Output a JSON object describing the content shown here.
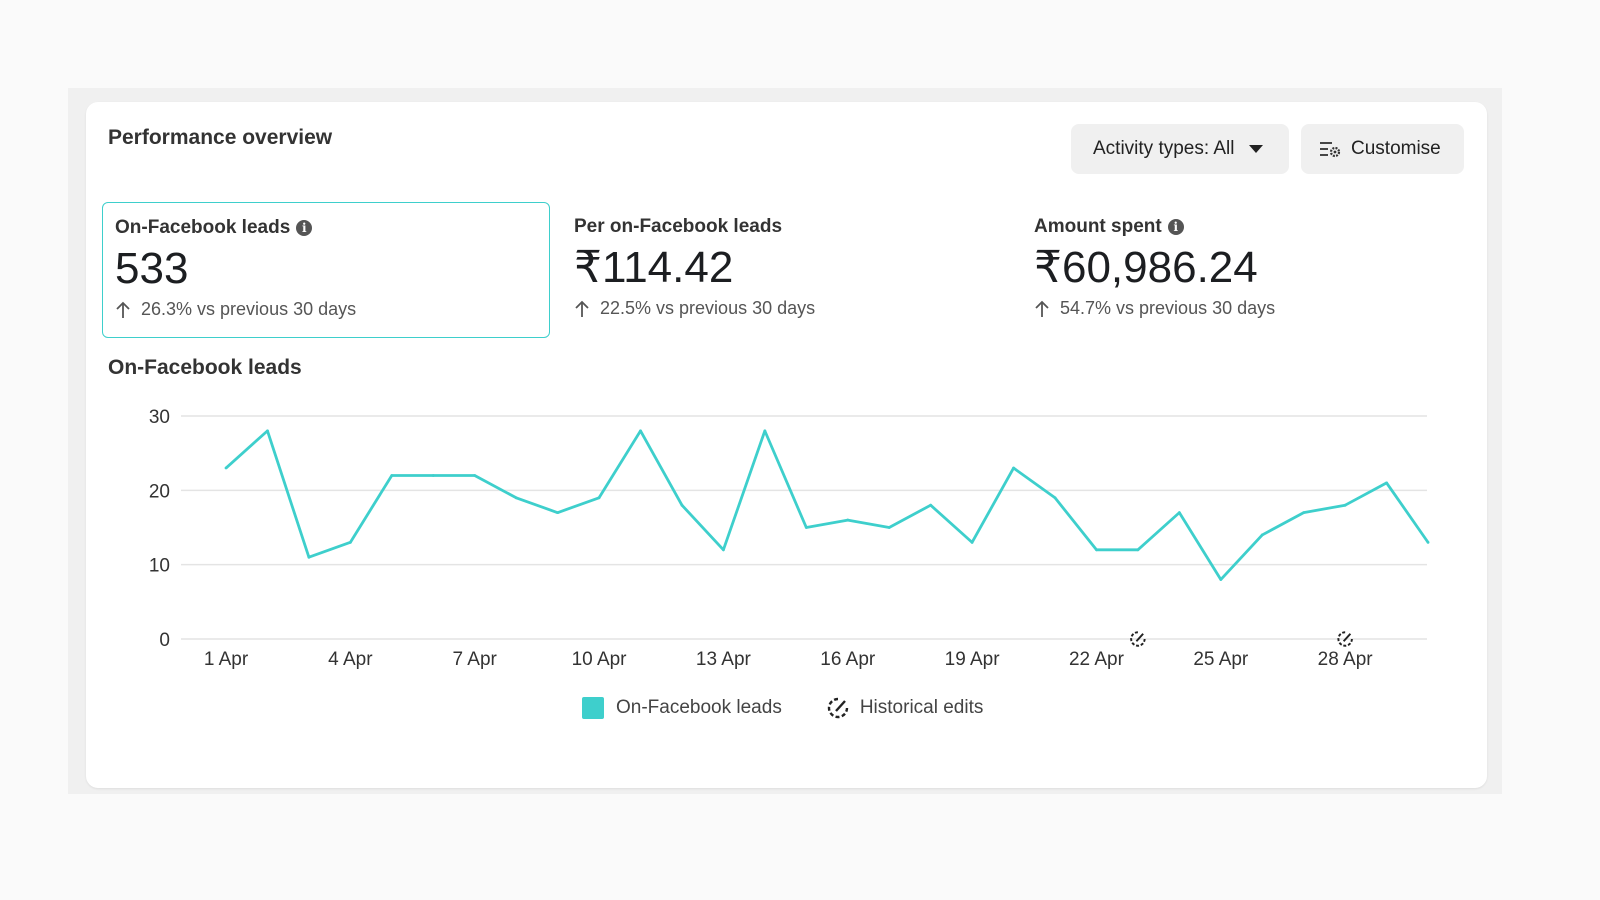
{
  "card": {
    "title": "Performance overview",
    "activity_button": "Activity types: All",
    "customise_button": "Customise"
  },
  "metrics": [
    {
      "label": "On-Facebook leads",
      "value": "533",
      "change": "26.3% vs previous 30 days",
      "has_info": true,
      "selected": true
    },
    {
      "label": "Per on-Facebook leads",
      "value": "₹114.42",
      "change": "22.5% vs previous 30 days",
      "has_info": false,
      "selected": false
    },
    {
      "label": "Amount spent",
      "value": "₹60,986.24",
      "change": "54.7% vs previous 30 days",
      "has_info": true,
      "selected": false
    }
  ],
  "chart_title": "On-Facebook leads",
  "legend": {
    "series_label": "On-Facebook leads",
    "edits_label": "Historical edits"
  },
  "colors": {
    "accent": "#3ecfcc",
    "grid": "#e4e4e4",
    "button_bg": "#f0f0f0"
  },
  "chart_data": {
    "type": "line",
    "title": "On-Facebook leads",
    "x_ticks": [
      "1 Apr",
      "4 Apr",
      "7 Apr",
      "10 Apr",
      "13 Apr",
      "16 Apr",
      "19 Apr",
      "22 Apr",
      "25 Apr",
      "28 Apr"
    ],
    "x_days": [
      1,
      4,
      7,
      10,
      13,
      16,
      19,
      22,
      25,
      28
    ],
    "ylim": [
      0,
      30
    ],
    "y_ticks": [
      0,
      10,
      20,
      30
    ],
    "series": [
      {
        "name": "On-Facebook leads",
        "x": [
          1,
          2,
          3,
          4,
          5,
          6,
          7,
          8,
          9,
          10,
          11,
          12,
          13,
          14,
          15,
          16,
          17,
          18,
          19,
          20,
          21,
          22,
          23,
          24,
          25,
          26,
          27,
          28,
          29,
          30
        ],
        "values": [
          23,
          28,
          11,
          13,
          22,
          22,
          22,
          19,
          17,
          19,
          28,
          18,
          12,
          28,
          15,
          16,
          15,
          18,
          13,
          23,
          19,
          12,
          12,
          17,
          8,
          14,
          17,
          18,
          21,
          13
        ]
      }
    ],
    "historical_edits_days": [
      23,
      28
    ],
    "grid": true,
    "legend_position": "bottom-center"
  }
}
